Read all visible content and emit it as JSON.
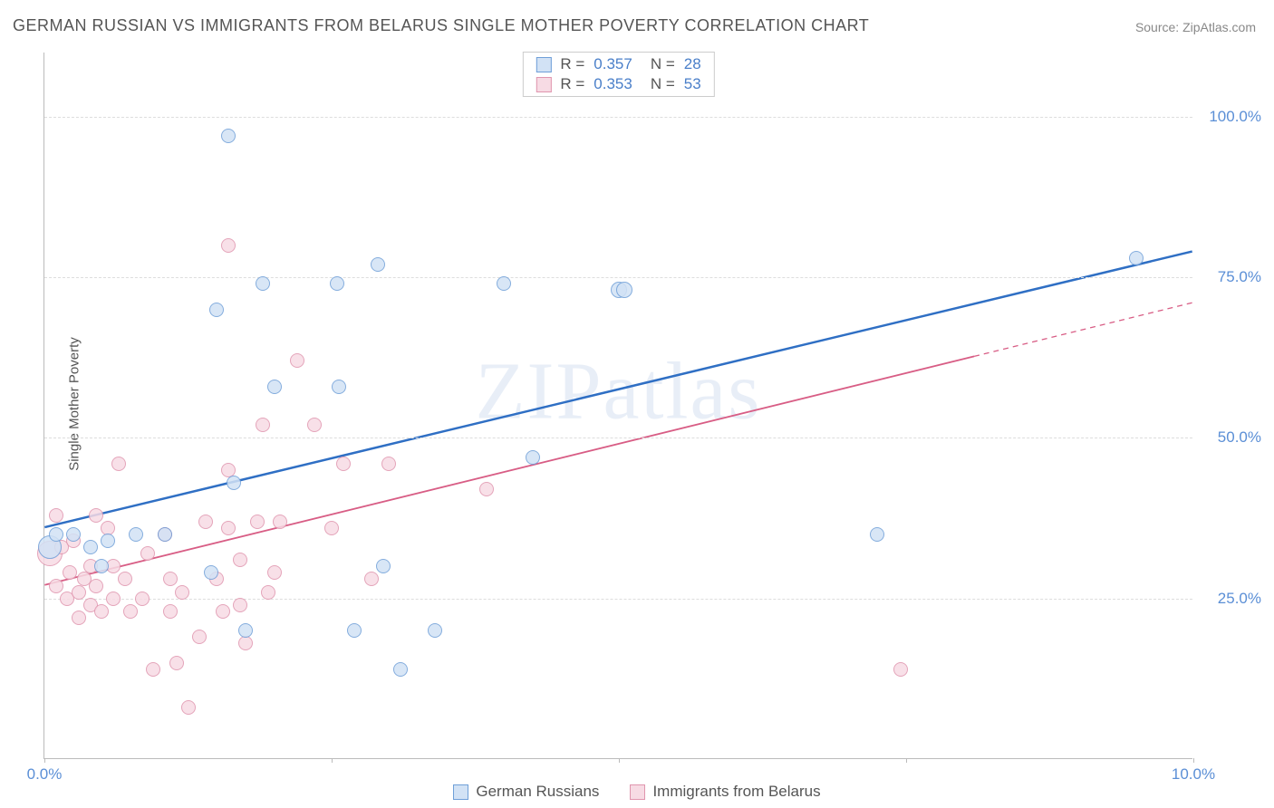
{
  "title": "GERMAN RUSSIAN VS IMMIGRANTS FROM BELARUS SINGLE MOTHER POVERTY CORRELATION CHART",
  "source_label": "Source: ZipAtlas.com",
  "ylabel": "Single Mother Poverty",
  "watermark": "ZIPatlas",
  "chart": {
    "type": "scatter",
    "xlim": [
      0,
      10
    ],
    "ylim": [
      0,
      110
    ],
    "ytick_values": [
      25,
      50,
      75,
      100
    ],
    "ytick_labels": [
      "25.0%",
      "50.0%",
      "75.0%",
      "100.0%"
    ],
    "xtick_values": [
      0,
      5,
      10
    ],
    "xtick_labels": [
      "0.0%",
      "",
      "10.0%"
    ],
    "xtick_marks": [
      0,
      2.5,
      5,
      7.5,
      10
    ],
    "background_color": "#ffffff",
    "grid_color": "#dddddd",
    "axis_color": "#bbbbbb",
    "tick_text_color": "#5b8fd6",
    "label_fontsize": 15,
    "tick_fontsize": 17
  },
  "series": [
    {
      "name": "German Russians",
      "key": "german_russians",
      "marker_fill": "#d2e2f5",
      "marker_stroke": "#6f9fd8",
      "marker_radius": 8,
      "line_color": "#2f6fc4",
      "line_width": 2.5,
      "trend": {
        "x1": 0,
        "y1": 36,
        "x2": 10,
        "y2": 79,
        "dash_split": 10
      },
      "stats": {
        "R": "0.357",
        "N": "28"
      },
      "points": [
        [
          0.05,
          33,
          13
        ],
        [
          0.1,
          35,
          8
        ],
        [
          0.25,
          35,
          8
        ],
        [
          0.4,
          33,
          8
        ],
        [
          0.5,
          30,
          8
        ],
        [
          0.55,
          34,
          8
        ],
        [
          0.8,
          35,
          8
        ],
        [
          1.05,
          35,
          8
        ],
        [
          1.45,
          29,
          8
        ],
        [
          1.5,
          70,
          8
        ],
        [
          1.6,
          97,
          8
        ],
        [
          1.65,
          43,
          8
        ],
        [
          1.75,
          20,
          8
        ],
        [
          1.9,
          74,
          8
        ],
        [
          2.0,
          58,
          8
        ],
        [
          2.55,
          74,
          8
        ],
        [
          2.56,
          58,
          8
        ],
        [
          2.7,
          20,
          8
        ],
        [
          2.9,
          77,
          8
        ],
        [
          2.95,
          30,
          8
        ],
        [
          3.1,
          14,
          8
        ],
        [
          3.4,
          20,
          8
        ],
        [
          4.0,
          74,
          8
        ],
        [
          4.25,
          47,
          8
        ],
        [
          5.0,
          73,
          9
        ],
        [
          5.05,
          73,
          9
        ],
        [
          7.25,
          35,
          8
        ],
        [
          9.5,
          78,
          8
        ]
      ]
    },
    {
      "name": "Immigrants from Belarus",
      "key": "immigrants_belarus",
      "marker_fill": "#f7dbe4",
      "marker_stroke": "#e095ae",
      "marker_radius": 8,
      "line_color": "#d85d85",
      "line_width": 1.8,
      "trend": {
        "x1": 0,
        "y1": 27,
        "x2": 10,
        "y2": 71,
        "dash_split": 8.1
      },
      "stats": {
        "R": "0.353",
        "N": "53"
      },
      "points": [
        [
          0.05,
          32,
          14
        ],
        [
          0.1,
          38,
          8
        ],
        [
          0.1,
          27,
          8
        ],
        [
          0.15,
          33,
          8
        ],
        [
          0.2,
          25,
          8
        ],
        [
          0.22,
          29,
          8
        ],
        [
          0.25,
          34,
          8
        ],
        [
          0.3,
          26,
          8
        ],
        [
          0.3,
          22,
          8
        ],
        [
          0.35,
          28,
          8
        ],
        [
          0.4,
          24,
          8
        ],
        [
          0.4,
          30,
          8
        ],
        [
          0.45,
          27,
          8
        ],
        [
          0.45,
          38,
          8
        ],
        [
          0.5,
          23,
          8
        ],
        [
          0.55,
          36,
          8
        ],
        [
          0.6,
          25,
          8
        ],
        [
          0.6,
          30,
          8
        ],
        [
          0.65,
          46,
          8
        ],
        [
          0.7,
          28,
          8
        ],
        [
          0.75,
          23,
          8
        ],
        [
          0.85,
          25,
          8
        ],
        [
          0.9,
          32,
          8
        ],
        [
          0.95,
          14,
          8
        ],
        [
          1.05,
          35,
          8
        ],
        [
          1.1,
          23,
          8
        ],
        [
          1.1,
          28,
          8
        ],
        [
          1.15,
          15,
          8
        ],
        [
          1.2,
          26,
          8
        ],
        [
          1.25,
          8,
          8
        ],
        [
          1.35,
          19,
          8
        ],
        [
          1.4,
          37,
          8
        ],
        [
          1.5,
          28,
          8
        ],
        [
          1.55,
          23,
          8
        ],
        [
          1.6,
          36,
          8
        ],
        [
          1.6,
          45,
          8
        ],
        [
          1.6,
          80,
          8
        ],
        [
          1.7,
          24,
          8
        ],
        [
          1.7,
          31,
          8
        ],
        [
          1.75,
          18,
          8
        ],
        [
          1.85,
          37,
          8
        ],
        [
          1.9,
          52,
          8
        ],
        [
          1.95,
          26,
          8
        ],
        [
          2.0,
          29,
          8
        ],
        [
          2.05,
          37,
          8
        ],
        [
          2.2,
          62,
          8
        ],
        [
          2.35,
          52,
          8
        ],
        [
          2.5,
          36,
          8
        ],
        [
          2.6,
          46,
          8
        ],
        [
          2.85,
          28,
          8
        ],
        [
          3.0,
          46,
          8
        ],
        [
          3.85,
          42,
          8
        ],
        [
          7.45,
          14,
          8
        ]
      ]
    }
  ],
  "stat_labels": {
    "R": "R =",
    "N": "N ="
  },
  "bottom_legend": [
    {
      "label": "German Russians",
      "fill": "#d2e2f5",
      "stroke": "#6f9fd8"
    },
    {
      "label": "Immigrants from Belarus",
      "fill": "#f7dbe4",
      "stroke": "#e095ae"
    }
  ]
}
